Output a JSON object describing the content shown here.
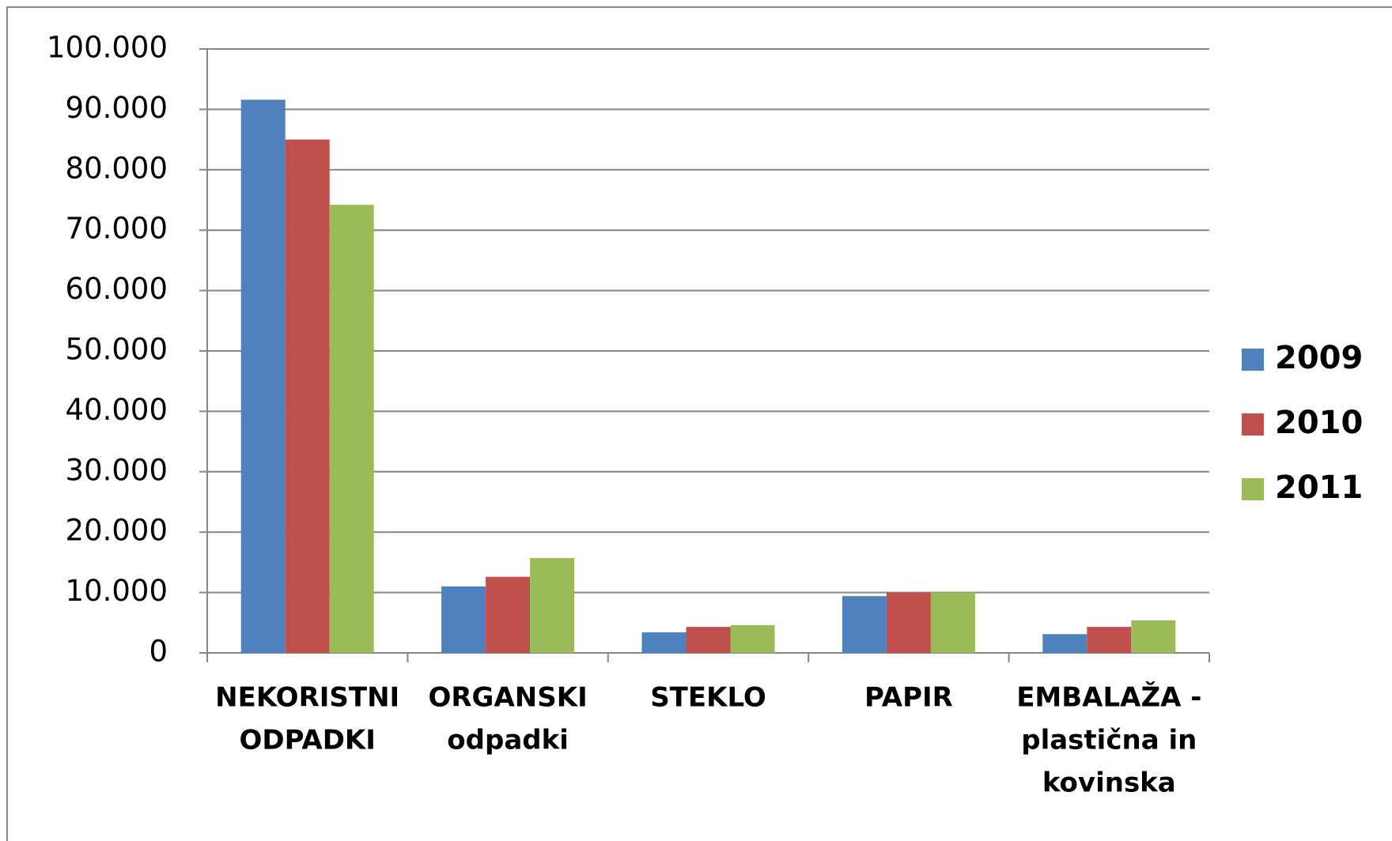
{
  "chart_data": {
    "type": "bar",
    "categories": [
      [
        "NEKORISTNI",
        "ODPADKI"
      ],
      [
        "ORGANSKI",
        "odpadki"
      ],
      [
        "STEKLO"
      ],
      [
        "PAPIR"
      ],
      [
        "EMBALAŽA -",
        "plastična in",
        "kovinska"
      ]
    ],
    "series": [
      {
        "name": "2009",
        "color": "#4f81bd",
        "values": [
          91600,
          11000,
          3400,
          9400,
          3100
        ]
      },
      {
        "name": "2010",
        "color": "#c0504d",
        "values": [
          85000,
          12600,
          4300,
          10000,
          4300
        ]
      },
      {
        "name": "2011",
        "color": "#9bbb59",
        "values": [
          74200,
          15700,
          4600,
          10000,
          5400
        ]
      }
    ],
    "ylim": [
      0,
      100000
    ],
    "yticks": [
      0,
      {
        "value": 10000,
        "label": "10.000"
      },
      {
        "value": 20000,
        "label": "20.000"
      },
      {
        "value": 30000,
        "label": "30.000"
      },
      {
        "value": 40000,
        "label": "40.000"
      },
      {
        "value": 50000,
        "label": "50.000"
      },
      {
        "value": 60000,
        "label": "60.000"
      },
      {
        "value": 70000,
        "label": "70.000"
      },
      {
        "value": 80000,
        "label": "80.000"
      },
      {
        "value": 90000,
        "label": "90.000"
      },
      {
        "value": 100000,
        "label": "100.000"
      }
    ],
    "grid": true,
    "legend": "right"
  }
}
